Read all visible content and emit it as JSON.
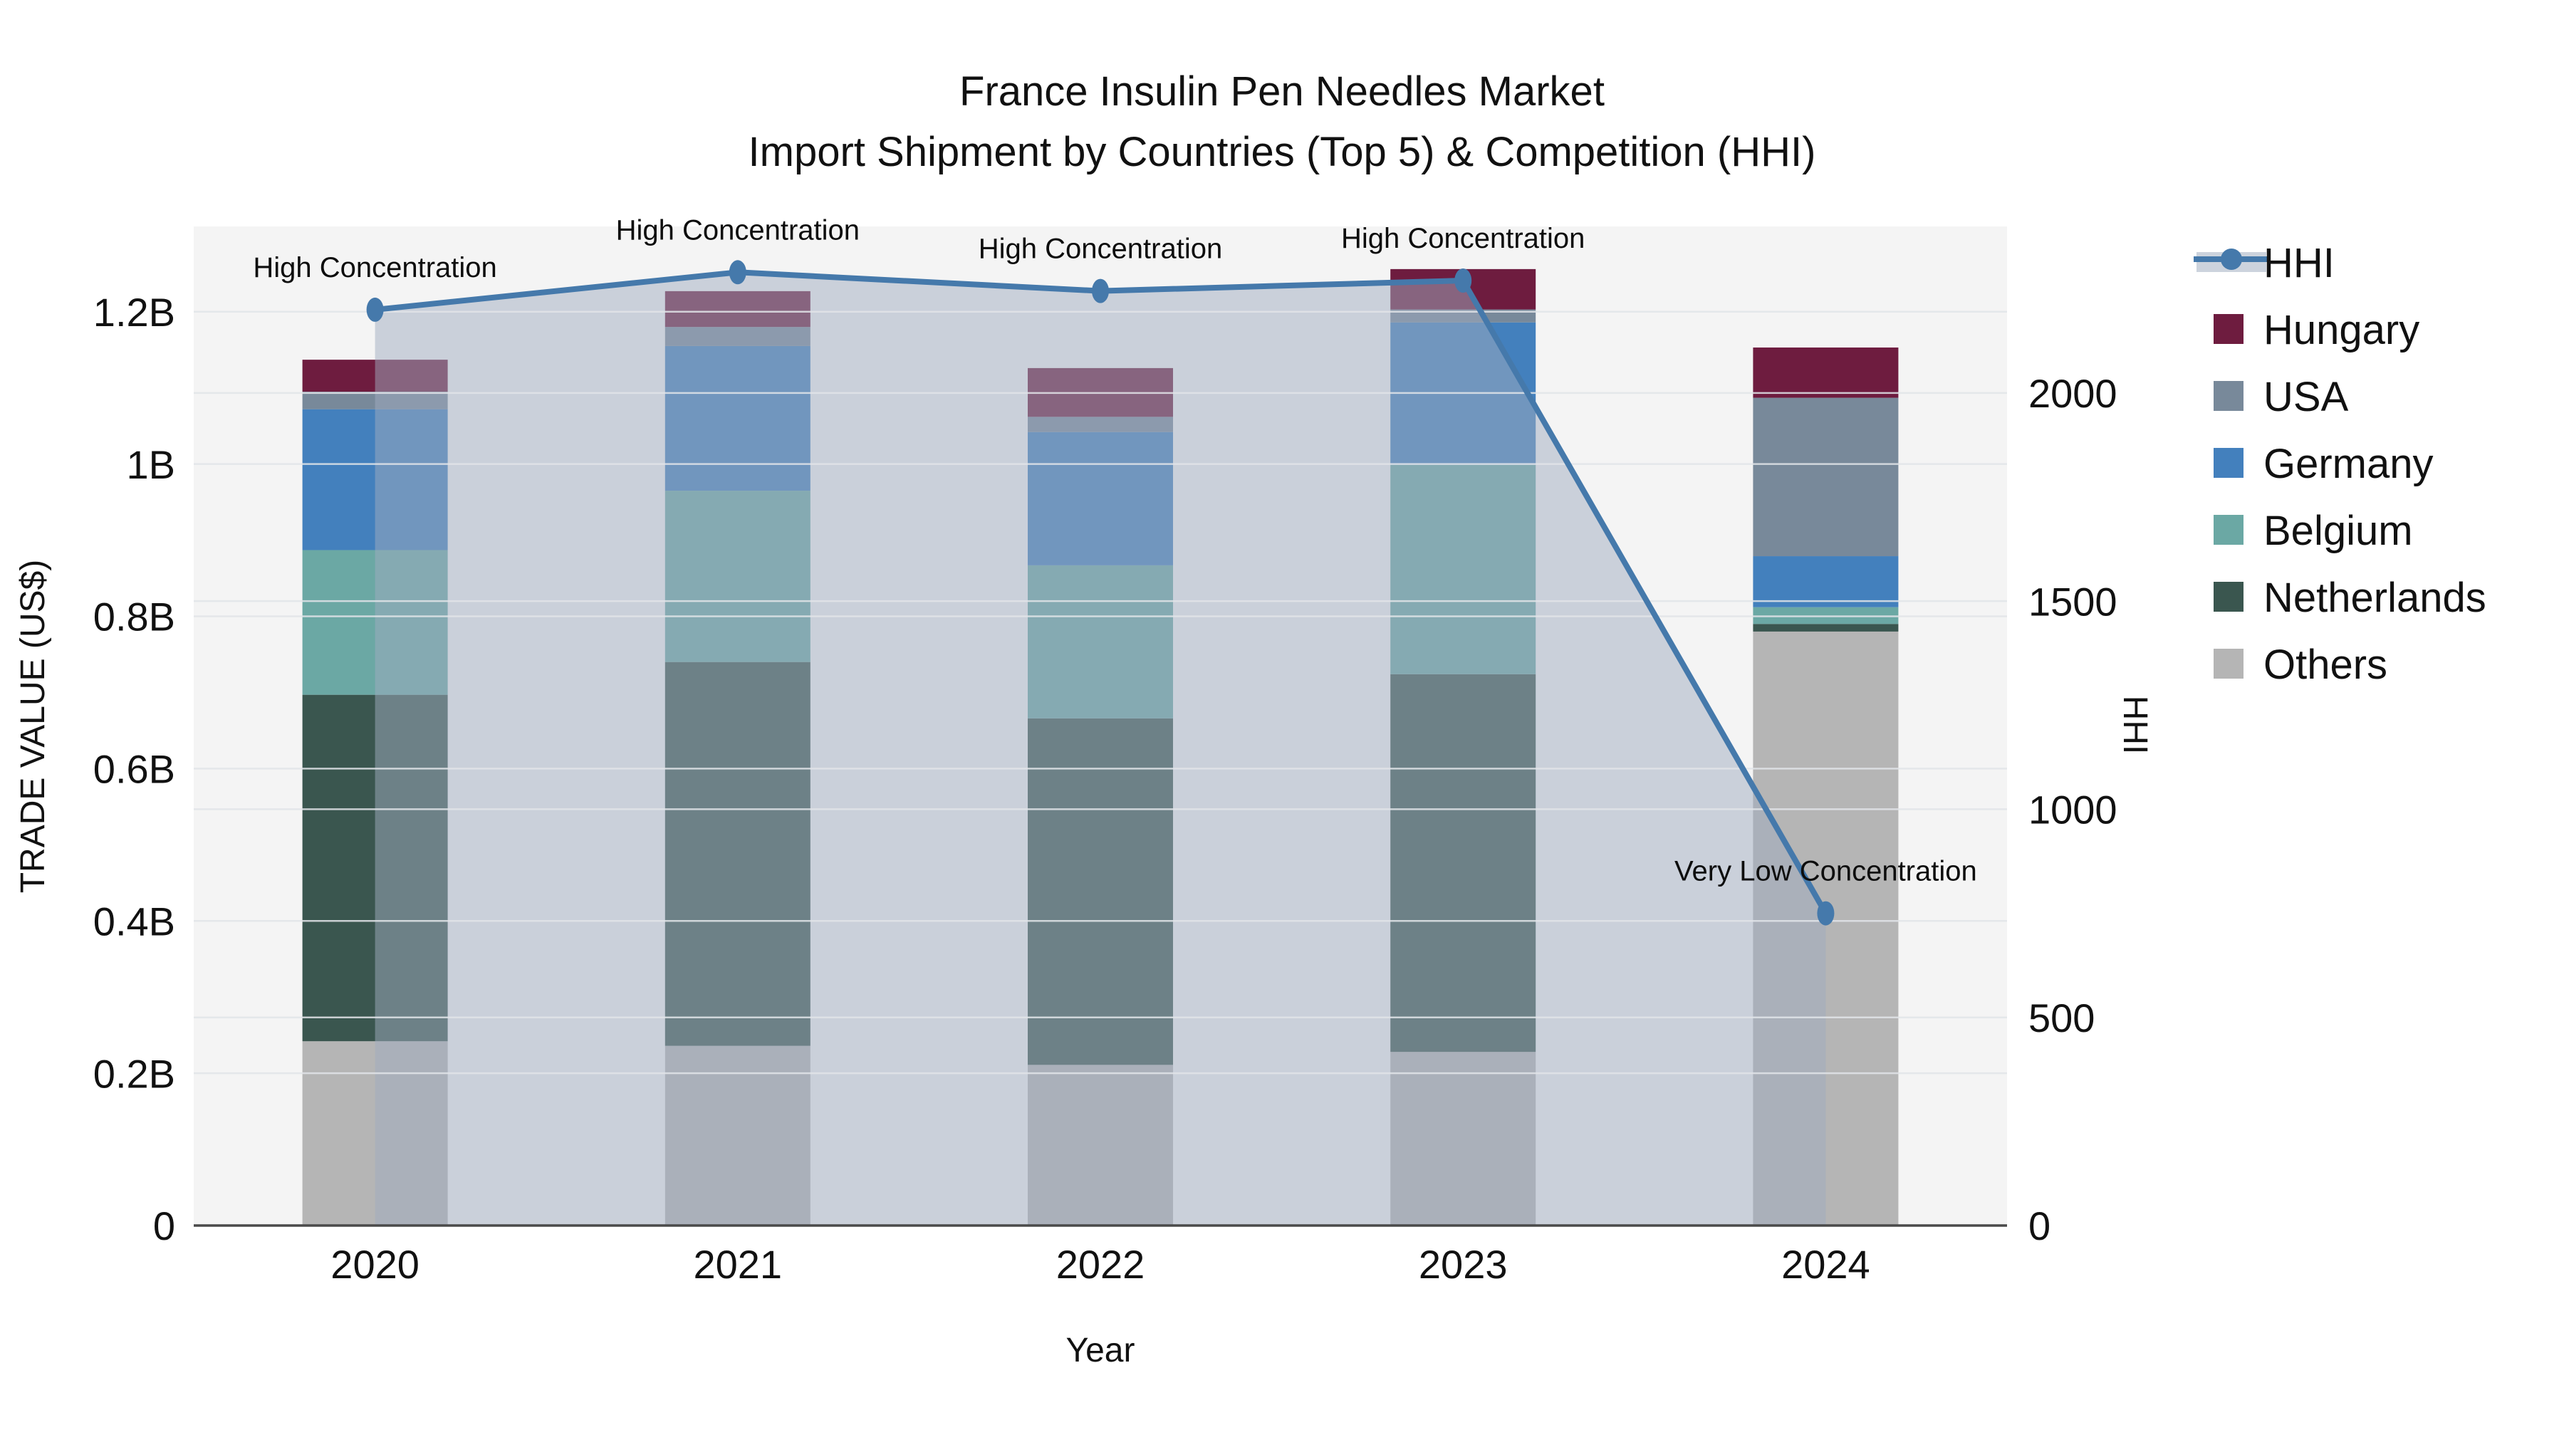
{
  "figure": {
    "background": "#ffffff",
    "plot_background": "#f4f4f4",
    "grid_color": "#e2e5e9",
    "axis_line_color": "#4a4a4a",
    "text_color": "#111111"
  },
  "title": {
    "line1": "France Insulin Pen Needles Market",
    "line2": "Import Shipment by Countries (Top 5) & Competition (HHI)"
  },
  "chart_data": {
    "type": "combo: stacked-bar + line (dual axis)",
    "categories": [
      "2020",
      "2021",
      "2022",
      "2023",
      "2024"
    ],
    "xlabel": "Year",
    "ylabel_left": "TRADE VALUE (US$)",
    "ylabel_right": "HHI",
    "y_left": {
      "unit": "billions USD",
      "max": 1.312,
      "ticks": [
        {
          "v": 0.0,
          "label": "0"
        },
        {
          "v": 0.2,
          "label": "0.2B"
        },
        {
          "v": 0.4,
          "label": "0.4B"
        },
        {
          "v": 0.6,
          "label": "0.6B"
        },
        {
          "v": 0.8,
          "label": "0.8B"
        },
        {
          "v": 1.0,
          "label": "1B"
        },
        {
          "v": 1.2,
          "label": "1.2B"
        }
      ]
    },
    "y_right": {
      "max": 2400,
      "ticks": [
        {
          "v": 0,
          "label": "0"
        },
        {
          "v": 500,
          "label": "500"
        },
        {
          "v": 1000,
          "label": "1000"
        },
        {
          "v": 1500,
          "label": "1500"
        },
        {
          "v": 2000,
          "label": "2000"
        }
      ]
    },
    "bar_series": [
      {
        "name": "Others",
        "color": "#b5b5b5",
        "values": [
          0.242,
          0.236,
          0.211,
          0.228,
          0.78
        ]
      },
      {
        "name": "Netherlands",
        "color": "#3a564f",
        "values": [
          0.455,
          0.504,
          0.455,
          0.496,
          0.01
        ]
      },
      {
        "name": "Belgium",
        "color": "#6ba8a4",
        "values": [
          0.19,
          0.225,
          0.201,
          0.275,
          0.022
        ]
      },
      {
        "name": "Germany",
        "color": "#4380bd",
        "values": [
          0.185,
          0.19,
          0.175,
          0.187,
          0.067
        ]
      },
      {
        "name": "USA",
        "color": "#78899a",
        "values": [
          0.023,
          0.025,
          0.02,
          0.017,
          0.208
        ]
      },
      {
        "name": "Hungary",
        "color": "#6e1c3f",
        "values": [
          0.042,
          0.047,
          0.064,
          0.053,
          0.066
        ]
      }
    ],
    "bar_totals_label": [
      "1.14B",
      "1.23B",
      "1.13B",
      "1.26B",
      "1.15B"
    ],
    "line_series": {
      "name": "HHI",
      "color": "#4579ab",
      "fill_color": "rgba(160,172,192,0.5)",
      "legend_band_color": "#ccd3dd",
      "values": [
        2200,
        2290,
        2245,
        2270,
        750
      ],
      "annotations": [
        "High Concentration",
        "High Concentration",
        "High Concentration",
        "High Concentration",
        "Very Low Concentration"
      ]
    },
    "legend": {
      "items": [
        "HHI",
        "Hungary",
        "USA",
        "Germany",
        "Belgium",
        "Netherlands",
        "Others"
      ]
    }
  }
}
